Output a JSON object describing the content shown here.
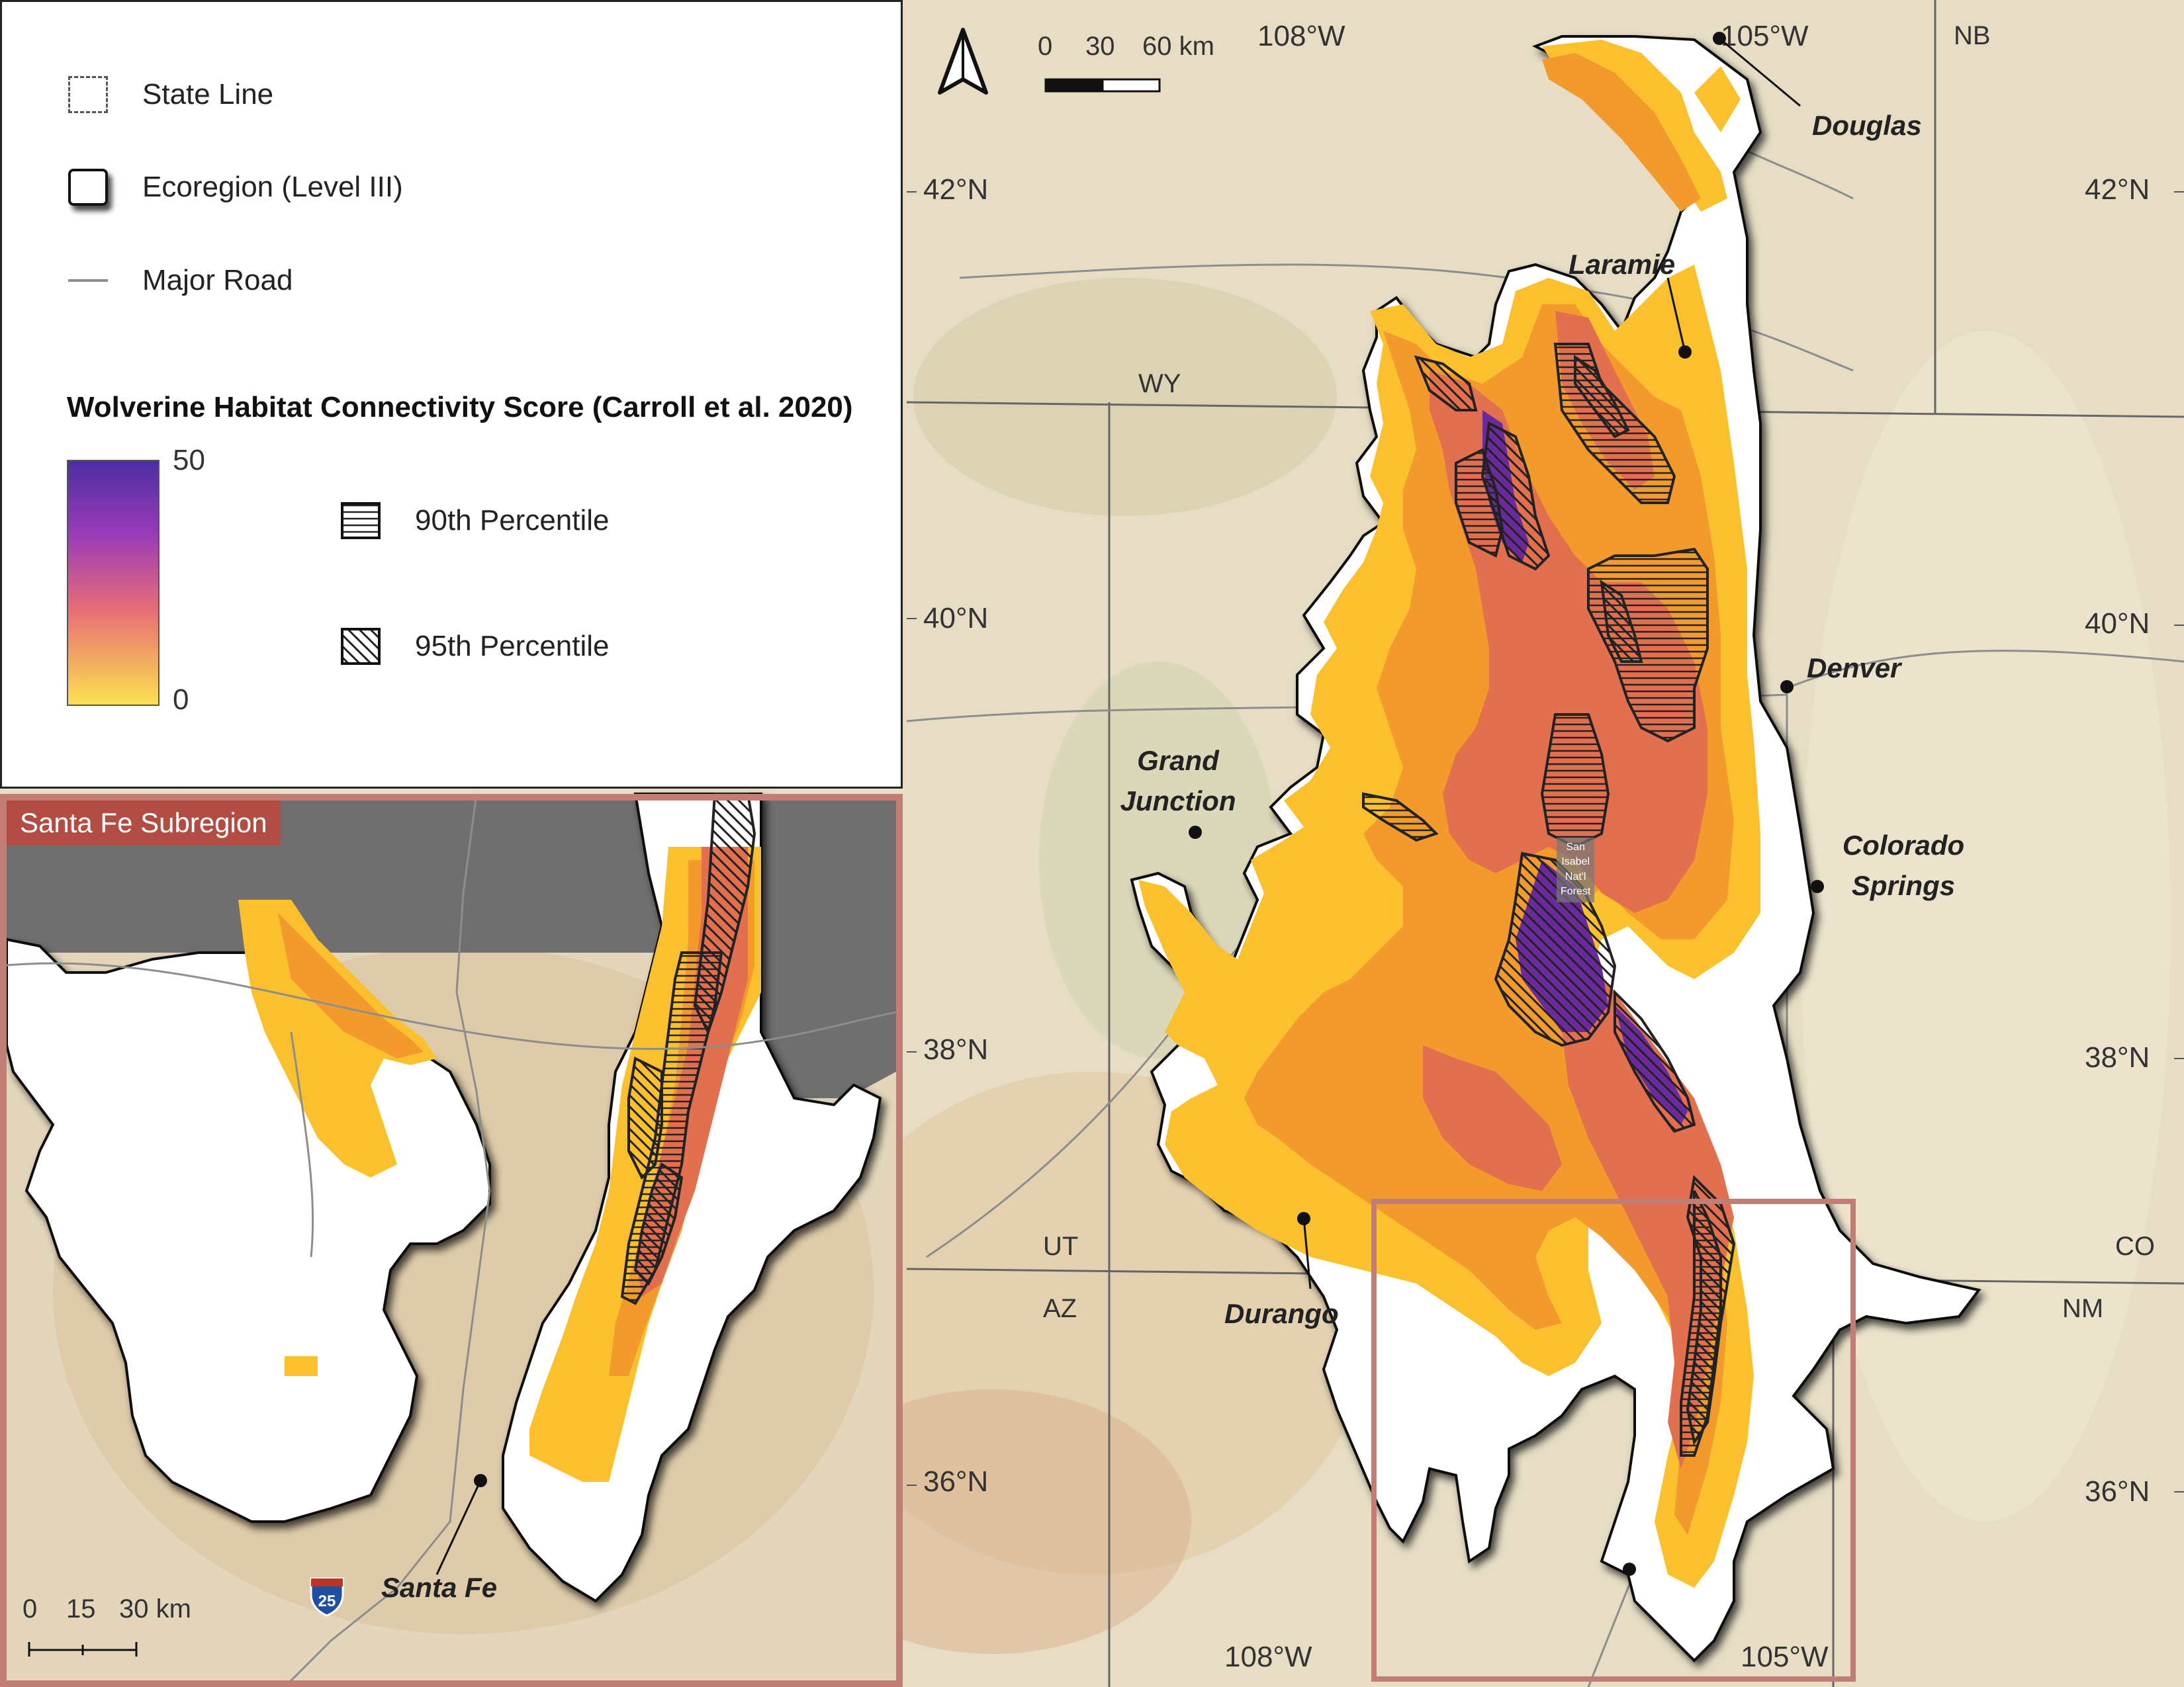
{
  "legend": {
    "state_line": "State Line",
    "ecoregion": "Ecoregion (Level III)",
    "major_road": "Major Road",
    "score_title": "Wolverine Habitat Connectivity Score (Carroll et al. 2020)",
    "score_max": "50",
    "score_min": "0",
    "p90": "90th Percentile",
    "p95": "95th Percentile",
    "gradient_colors": [
      "#4b2ea0",
      "#9b3bb8",
      "#e96f73",
      "#fbe150"
    ]
  },
  "inset": {
    "title": "Santa Fe Subregion",
    "scale": {
      "l0": "0",
      "l1": "15",
      "l2": "30 km"
    },
    "city": "Santa Fe",
    "highway_shield": "25"
  },
  "main_scale": {
    "l0": "0",
    "l1": "30",
    "l2": "60 km"
  },
  "graticule": {
    "lon_108_top": "108°W",
    "lon_105_top": "105°W",
    "lon_108_bottom": "108°W",
    "lon_105_bottom": "105°W",
    "lat_42_l": "42°N",
    "lat_40_l": "40°N",
    "lat_38_l": "38°N",
    "lat_36_l": "36°N",
    "lat_42_r": "42°N",
    "lat_40_r": "40°N",
    "lat_38_r": "38°N",
    "lat_36_r": "36°N"
  },
  "states": {
    "nb": "NB",
    "wy": "WY",
    "ut": "UT",
    "co": "CO",
    "az": "AZ",
    "nm": "NM"
  },
  "cities": {
    "douglas": "Douglas",
    "laramie": "Laramie",
    "denver": "Denver",
    "grand_junction_1": "Grand",
    "grand_junction_2": "Junction",
    "colorado_springs_1": "Colorado",
    "colorado_springs_2": "Springs",
    "durango": "Durango"
  },
  "forest_label": [
    "San",
    "Isabel",
    "Nat'l",
    "Forest"
  ],
  "colors": {
    "terrain": "#e6ddc4",
    "ecoregion_fill": "#ffffff",
    "low_score": "#fbc02d",
    "mid_score": "#f39a2c",
    "high_score": "#e2704f",
    "top_score": "#6a2a9c",
    "inset_frame": "#c27d75"
  }
}
